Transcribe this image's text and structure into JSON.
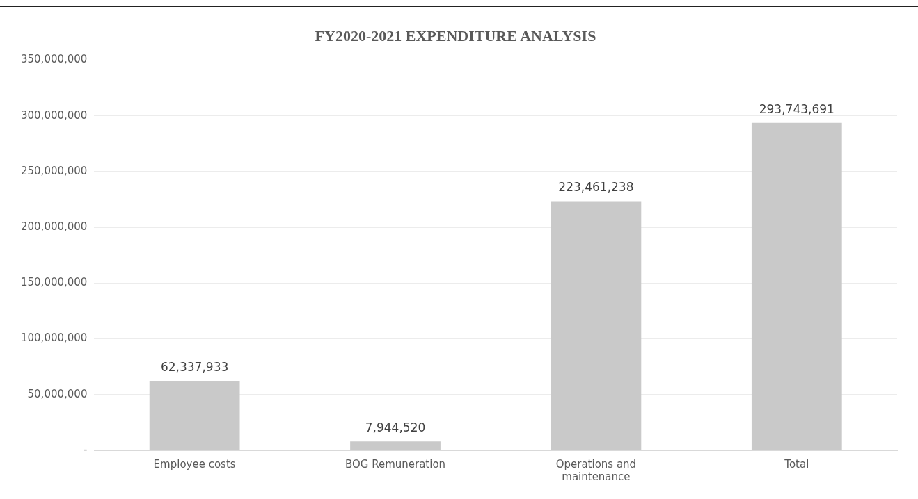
{
  "chart_data": {
    "type": "bar",
    "title": "FY2020-2021 EXPENDITURE ANALYSIS",
    "categories": [
      "Employee costs",
      "BOG Remuneration",
      "Operations and maintenance",
      "Total"
    ],
    "values": [
      62337933,
      7944520,
      223461238,
      293743691
    ],
    "color": "#c9c9c9",
    "ylim": [
      0,
      350000000
    ],
    "yticks": [
      {
        "value": 0,
        "label": "-"
      },
      {
        "value": 50000000,
        "label": "50,000,000"
      },
      {
        "value": 100000000,
        "label": "100,000,000"
      },
      {
        "value": 150000000,
        "label": "150,000,000"
      },
      {
        "value": 200000000,
        "label": "200,000,000"
      },
      {
        "value": 250000000,
        "label": "250,000,000"
      },
      {
        "value": 300000000,
        "label": "300,000,000"
      },
      {
        "value": 350000000,
        "label": "350,000,000"
      }
    ],
    "value_labels": [
      "62,337,933",
      "7,944,520",
      "223,461,238",
      "293,743,691"
    ],
    "grid": "y",
    "legend": false
  }
}
